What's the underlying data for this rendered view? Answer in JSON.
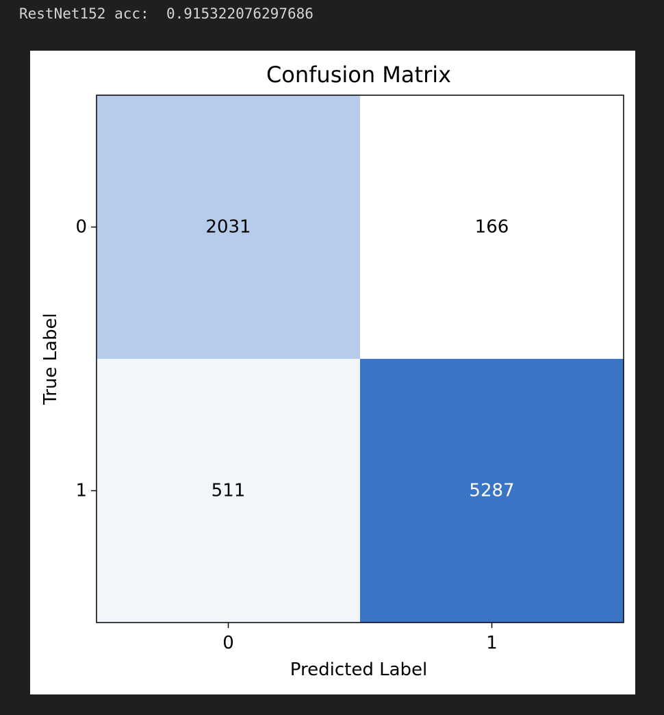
{
  "console": {
    "label": "RestNet152 acc:",
    "value": "0.915322076297686"
  },
  "chart_data": {
    "type": "heatmap",
    "title": "Confusion Matrix",
    "xlabel": "Predicted Label",
    "ylabel": "True Label",
    "x_categories": [
      "0",
      "1"
    ],
    "y_categories": [
      "0",
      "1"
    ],
    "values": [
      [
        2031,
        166
      ],
      [
        511,
        5287
      ]
    ],
    "grid": false,
    "colormap": {
      "low": "#ffffff",
      "high": "#3a74c4"
    }
  }
}
